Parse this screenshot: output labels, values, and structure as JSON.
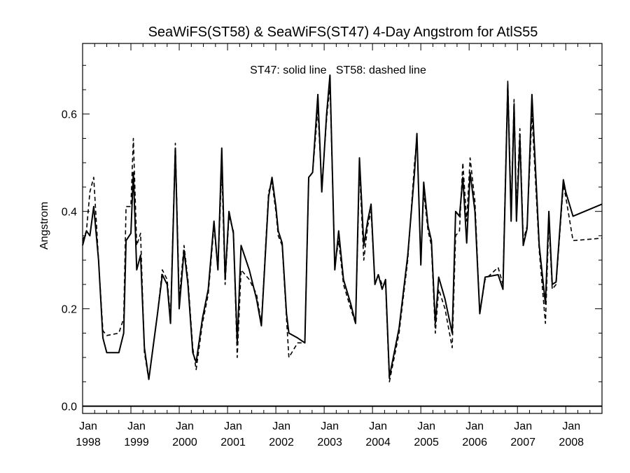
{
  "chart_data": {
    "type": "line",
    "title": "SeaWiFS(ST58) & SeaWiFS(ST47) 4-Day Angstrom for AtlS55",
    "annotation": "ST47: solid line   ST58: dashed line",
    "xlabel": "",
    "ylabel": "Angstrom",
    "xlim": [
      1998.0,
      2008.75
    ],
    "ylim": [
      -0.015,
      0.745
    ],
    "yticks": [
      0.0,
      0.2,
      0.4,
      0.6
    ],
    "ytick_labels": [
      "0.0",
      "0.2",
      "0.4",
      "0.6"
    ],
    "xticks": [
      1998,
      1999,
      2000,
      2001,
      2002,
      2003,
      2004,
      2005,
      2006,
      2007,
      2008
    ],
    "xtick_labels": [
      [
        "Jan",
        "1998"
      ],
      [
        "Jan",
        "1999"
      ],
      [
        "Jan",
        "2000"
      ],
      [
        "Jan",
        "2001"
      ],
      [
        "Jan",
        "2002"
      ],
      [
        "Jan",
        "2003"
      ],
      [
        "Jan",
        "2004"
      ],
      [
        "Jan",
        "2005"
      ],
      [
        "Jan",
        "2006"
      ],
      [
        "Jan",
        "2007"
      ],
      [
        "Jan",
        "2008"
      ]
    ],
    "zero_line": 0.0,
    "grid": false,
    "series": [
      {
        "name": "ST47",
        "style": "solid",
        "color": "#000000",
        "points": [
          [
            1998.0,
            0.33
          ],
          [
            1998.08,
            0.36
          ],
          [
            1998.15,
            0.35
          ],
          [
            1998.23,
            0.41
          ],
          [
            1998.33,
            0.3
          ],
          [
            1998.42,
            0.14
          ],
          [
            1998.5,
            0.11
          ],
          [
            1998.75,
            0.11
          ],
          [
            1998.85,
            0.15
          ],
          [
            1998.9,
            0.34
          ],
          [
            1999.0,
            0.355
          ],
          [
            1999.05,
            0.48
          ],
          [
            1999.12,
            0.28
          ],
          [
            1999.2,
            0.31
          ],
          [
            1999.28,
            0.12
          ],
          [
            1999.37,
            0.055
          ],
          [
            1999.55,
            0.19
          ],
          [
            1999.65,
            0.27
          ],
          [
            1999.75,
            0.25
          ],
          [
            1999.82,
            0.17
          ],
          [
            1999.92,
            0.53
          ],
          [
            2000.0,
            0.2
          ],
          [
            2000.1,
            0.32
          ],
          [
            2000.18,
            0.25
          ],
          [
            2000.28,
            0.11
          ],
          [
            2000.35,
            0.09
          ],
          [
            2000.48,
            0.18
          ],
          [
            2000.6,
            0.24
          ],
          [
            2000.72,
            0.38
          ],
          [
            2000.8,
            0.28
          ],
          [
            2000.88,
            0.53
          ],
          [
            2000.95,
            0.26
          ],
          [
            2001.03,
            0.4
          ],
          [
            2001.12,
            0.355
          ],
          [
            2001.2,
            0.13
          ],
          [
            2001.28,
            0.33
          ],
          [
            2001.45,
            0.28
          ],
          [
            2001.6,
            0.22
          ],
          [
            2001.7,
            0.165
          ],
          [
            2001.85,
            0.43
          ],
          [
            2001.92,
            0.47
          ],
          [
            2002.0,
            0.41
          ],
          [
            2002.05,
            0.36
          ],
          [
            2002.13,
            0.335
          ],
          [
            2002.22,
            0.19
          ],
          [
            2002.27,
            0.15
          ],
          [
            2002.45,
            0.14
          ],
          [
            2002.6,
            0.13
          ],
          [
            2002.68,
            0.47
          ],
          [
            2002.76,
            0.48
          ],
          [
            2002.87,
            0.64
          ],
          [
            2002.95,
            0.44
          ],
          [
            2003.05,
            0.6
          ],
          [
            2003.12,
            0.68
          ],
          [
            2003.22,
            0.28
          ],
          [
            2003.3,
            0.36
          ],
          [
            2003.4,
            0.26
          ],
          [
            2003.55,
            0.21
          ],
          [
            2003.65,
            0.17
          ],
          [
            2003.73,
            0.51
          ],
          [
            2003.82,
            0.33
          ],
          [
            2003.9,
            0.38
          ],
          [
            2003.97,
            0.415
          ],
          [
            2004.05,
            0.25
          ],
          [
            2004.12,
            0.27
          ],
          [
            2004.2,
            0.24
          ],
          [
            2004.27,
            0.26
          ],
          [
            2004.35,
            0.06
          ],
          [
            2004.55,
            0.16
          ],
          [
            2004.73,
            0.31
          ],
          [
            2004.87,
            0.48
          ],
          [
            2004.92,
            0.56
          ],
          [
            2005.0,
            0.29
          ],
          [
            2005.06,
            0.46
          ],
          [
            2005.15,
            0.37
          ],
          [
            2005.22,
            0.34
          ],
          [
            2005.3,
            0.17
          ],
          [
            2005.37,
            0.265
          ],
          [
            2005.5,
            0.22
          ],
          [
            2005.65,
            0.15
          ],
          [
            2005.72,
            0.4
          ],
          [
            2005.8,
            0.39
          ],
          [
            2005.87,
            0.47
          ],
          [
            2005.95,
            0.335
          ],
          [
            2006.02,
            0.48
          ],
          [
            2006.12,
            0.4
          ],
          [
            2006.22,
            0.19
          ],
          [
            2006.33,
            0.265
          ],
          [
            2006.6,
            0.27
          ],
          [
            2006.7,
            0.24
          ],
          [
            2006.8,
            0.66
          ],
          [
            2006.87,
            0.38
          ],
          [
            2006.93,
            0.62
          ],
          [
            2006.98,
            0.38
          ],
          [
            2007.05,
            0.55
          ],
          [
            2007.12,
            0.33
          ],
          [
            2007.2,
            0.365
          ],
          [
            2007.3,
            0.64
          ],
          [
            2007.45,
            0.33
          ],
          [
            2007.58,
            0.21
          ],
          [
            2007.65,
            0.4
          ],
          [
            2007.72,
            0.25
          ],
          [
            2007.8,
            0.255
          ],
          [
            2007.95,
            0.465
          ],
          [
            2008.0,
            0.44
          ],
          [
            2008.15,
            0.39
          ],
          [
            2008.75,
            0.415
          ]
        ]
      },
      {
        "name": "ST58",
        "style": "dashed",
        "color": "#000000",
        "points": [
          [
            1998.0,
            0.34
          ],
          [
            1998.08,
            0.36
          ],
          [
            1998.15,
            0.44
          ],
          [
            1998.23,
            0.47
          ],
          [
            1998.33,
            0.3
          ],
          [
            1998.42,
            0.155
          ],
          [
            1998.5,
            0.145
          ],
          [
            1998.75,
            0.15
          ],
          [
            1998.85,
            0.18
          ],
          [
            1998.9,
            0.41
          ],
          [
            1999.0,
            0.41
          ],
          [
            1999.05,
            0.55
          ],
          [
            1999.12,
            0.33
          ],
          [
            1999.2,
            0.355
          ],
          [
            1999.28,
            0.11
          ],
          [
            1999.37,
            0.055
          ],
          [
            1999.55,
            0.19
          ],
          [
            1999.65,
            0.28
          ],
          [
            1999.75,
            0.26
          ],
          [
            1999.82,
            0.18
          ],
          [
            1999.92,
            0.54
          ],
          [
            2000.0,
            0.22
          ],
          [
            2000.1,
            0.33
          ],
          [
            2000.18,
            0.26
          ],
          [
            2000.28,
            0.12
          ],
          [
            2000.35,
            0.075
          ],
          [
            2000.48,
            0.17
          ],
          [
            2000.6,
            0.23
          ],
          [
            2000.72,
            0.37
          ],
          [
            2000.8,
            0.28
          ],
          [
            2000.88,
            0.49
          ],
          [
            2000.95,
            0.25
          ],
          [
            2001.03,
            0.39
          ],
          [
            2001.12,
            0.36
          ],
          [
            2001.2,
            0.1
          ],
          [
            2001.28,
            0.28
          ],
          [
            2001.45,
            0.26
          ],
          [
            2001.6,
            0.23
          ],
          [
            2001.7,
            0.17
          ],
          [
            2001.85,
            0.44
          ],
          [
            2001.92,
            0.46
          ],
          [
            2002.0,
            0.4
          ],
          [
            2002.05,
            0.35
          ],
          [
            2002.13,
            0.33
          ],
          [
            2002.22,
            0.18
          ],
          [
            2002.27,
            0.1
          ],
          [
            2002.45,
            0.13
          ],
          [
            2002.6,
            0.13
          ],
          [
            2002.68,
            0.47
          ],
          [
            2002.76,
            0.48
          ],
          [
            2002.87,
            0.61
          ],
          [
            2002.95,
            0.45
          ],
          [
            2003.05,
            0.59
          ],
          [
            2003.12,
            0.66
          ],
          [
            2003.22,
            0.29
          ],
          [
            2003.3,
            0.34
          ],
          [
            2003.4,
            0.25
          ],
          [
            2003.55,
            0.2
          ],
          [
            2003.65,
            0.17
          ],
          [
            2003.73,
            0.49
          ],
          [
            2003.82,
            0.3
          ],
          [
            2003.9,
            0.37
          ],
          [
            2003.97,
            0.4
          ],
          [
            2004.05,
            0.25
          ],
          [
            2004.12,
            0.27
          ],
          [
            2004.2,
            0.25
          ],
          [
            2004.27,
            0.25
          ],
          [
            2004.35,
            0.05
          ],
          [
            2004.55,
            0.15
          ],
          [
            2004.73,
            0.3
          ],
          [
            2004.87,
            0.5
          ],
          [
            2004.92,
            0.55
          ],
          [
            2005.0,
            0.3
          ],
          [
            2005.06,
            0.44
          ],
          [
            2005.15,
            0.36
          ],
          [
            2005.22,
            0.33
          ],
          [
            2005.3,
            0.15
          ],
          [
            2005.37,
            0.24
          ],
          [
            2005.5,
            0.2
          ],
          [
            2005.65,
            0.12
          ],
          [
            2005.72,
            0.35
          ],
          [
            2005.8,
            0.36
          ],
          [
            2005.87,
            0.5
          ],
          [
            2005.95,
            0.38
          ],
          [
            2006.02,
            0.51
          ],
          [
            2006.12,
            0.42
          ],
          [
            2006.22,
            0.19
          ],
          [
            2006.33,
            0.26
          ],
          [
            2006.6,
            0.285
          ],
          [
            2006.7,
            0.25
          ],
          [
            2006.8,
            0.67
          ],
          [
            2006.87,
            0.4
          ],
          [
            2006.93,
            0.63
          ],
          [
            2006.98,
            0.4
          ],
          [
            2007.05,
            0.57
          ],
          [
            2007.12,
            0.34
          ],
          [
            2007.2,
            0.37
          ],
          [
            2007.3,
            0.6
          ],
          [
            2007.45,
            0.32
          ],
          [
            2007.58,
            0.17
          ],
          [
            2007.65,
            0.38
          ],
          [
            2007.72,
            0.24
          ],
          [
            2007.8,
            0.25
          ],
          [
            2007.95,
            0.455
          ],
          [
            2008.0,
            0.43
          ],
          [
            2008.15,
            0.34
          ],
          [
            2008.75,
            0.345
          ]
        ]
      }
    ]
  }
}
